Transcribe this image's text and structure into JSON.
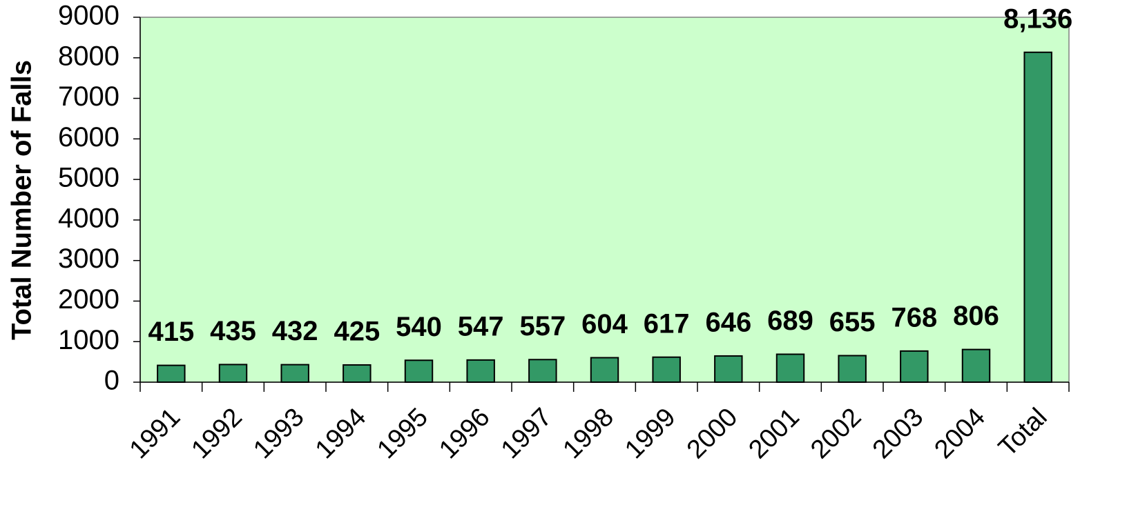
{
  "chart_data": {
    "type": "bar",
    "y_axis_label": "Total Number of Falls",
    "categories": [
      "1991",
      "1992",
      "1993",
      "1994",
      "1995",
      "1996",
      "1997",
      "1998",
      "1999",
      "2000",
      "2001",
      "2002",
      "2003",
      "2004",
      "Total"
    ],
    "values": [
      415,
      435,
      432,
      425,
      540,
      547,
      557,
      604,
      617,
      646,
      689,
      655,
      768,
      806,
      8136
    ],
    "value_labels": [
      "415",
      "435",
      "432",
      "425",
      "540",
      "547",
      "557",
      "604",
      "617",
      "646",
      "689",
      "655",
      "768",
      "806",
      "8,136"
    ],
    "color": "#339966",
    "background": "#ccffcc",
    "ylim": [
      0,
      9000
    ],
    "yticks": [
      0,
      1000,
      2000,
      3000,
      4000,
      5000,
      6000,
      7000,
      8000,
      9000
    ],
    "grid": false
  }
}
